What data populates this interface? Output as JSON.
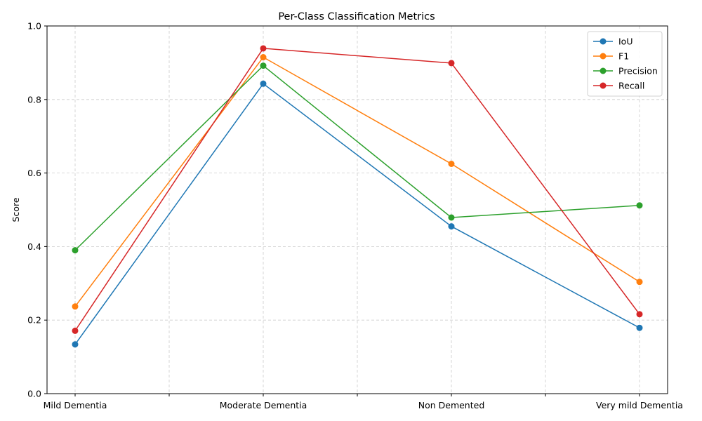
{
  "chart_data": {
    "type": "line",
    "title": "Per-Class Classification Metrics",
    "xlabel": "",
    "ylabel": "Score",
    "categories": [
      "Mild Dementia",
      "Moderate Dementia",
      "Non Demented",
      "Very mild Dementia"
    ],
    "ylim": [
      0,
      1.0
    ],
    "yticks": [
      "0.0",
      "0.2",
      "0.4",
      "0.6",
      "0.8",
      "1.0"
    ],
    "grid": true,
    "legend_position": "top-right",
    "series": [
      {
        "name": "IoU",
        "color": "#1f77b4",
        "values": [
          0.134,
          0.843,
          0.455,
          0.179
        ]
      },
      {
        "name": "F1",
        "color": "#ff7f0e",
        "values": [
          0.237,
          0.915,
          0.625,
          0.304
        ]
      },
      {
        "name": "Precision",
        "color": "#2ca02c",
        "values": [
          0.39,
          0.892,
          0.479,
          0.512
        ]
      },
      {
        "name": "Recall",
        "color": "#d62728",
        "values": [
          0.171,
          0.939,
          0.899,
          0.216
        ]
      }
    ]
  }
}
